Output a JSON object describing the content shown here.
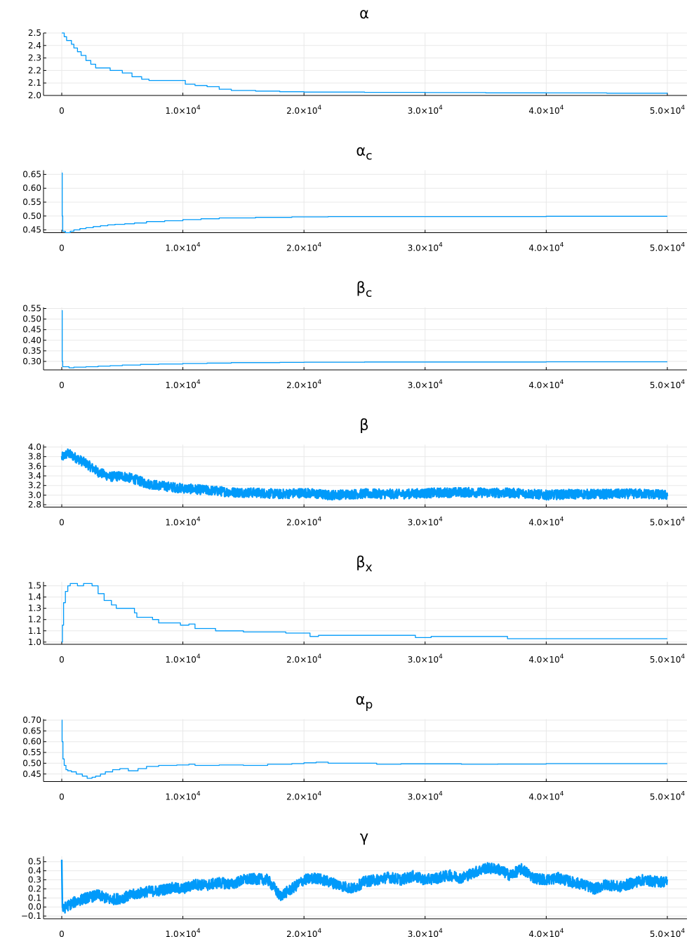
{
  "figure": {
    "accent_color": "#009AFA",
    "grid": true
  },
  "chart_data": [
    {
      "type": "line",
      "title": "α",
      "subscript": "",
      "ylim": [
        2.0,
        2.5
      ],
      "yticks": [
        2.0,
        2.1,
        2.2,
        2.3,
        2.4,
        2.5
      ],
      "decimals": 1,
      "xlim": [
        0,
        50000
      ],
      "xticks": [
        0,
        10000,
        20000,
        30000,
        40000,
        50000
      ],
      "xtick_labels": [
        "0",
        "1.0×10",
        "2.0×10",
        "3.0×10",
        "4.0×10",
        "5.0×10"
      ],
      "xtick_exponent": "4",
      "series": [
        {
          "kind": "step",
          "x": [
            0,
            200,
            400,
            600,
            800,
            1000,
            1300,
            1600,
            2000,
            2400,
            2800,
            3200,
            4000,
            5000,
            5800,
            6600,
            7200,
            8000,
            9500,
            10200,
            11000,
            12000,
            13000,
            14000,
            16000,
            18000,
            20000,
            25000,
            30000,
            35000,
            40000,
            45000,
            50000
          ],
          "y": [
            2.5,
            2.47,
            2.44,
            2.44,
            2.41,
            2.38,
            2.35,
            2.32,
            2.28,
            2.25,
            2.22,
            2.22,
            2.2,
            2.18,
            2.15,
            2.13,
            2.12,
            2.12,
            2.12,
            2.09,
            2.08,
            2.07,
            2.05,
            2.04,
            2.035,
            2.03,
            2.027,
            2.025,
            2.023,
            2.021,
            2.02,
            2.018,
            2.017
          ]
        }
      ]
    },
    {
      "type": "line",
      "title": "α",
      "subscript": "c",
      "ylim": [
        0.44,
        0.665
      ],
      "yticks": [
        0.45,
        0.5,
        0.55,
        0.6,
        0.65
      ],
      "decimals": 2,
      "xlim": [
        0,
        50000
      ],
      "xticks": [
        0,
        10000,
        20000,
        30000,
        40000,
        50000
      ],
      "xtick_labels": [
        "0",
        "1.0×10",
        "2.0×10",
        "3.0×10",
        "4.0×10",
        "5.0×10"
      ],
      "xtick_exponent": "4",
      "series": [
        {
          "kind": "step",
          "x": [
            0,
            40,
            80,
            300,
            700,
            1000,
            1500,
            2000,
            2600,
            3200,
            3800,
            4400,
            5200,
            6000,
            7000,
            8500,
            10000,
            11500,
            13000,
            16000,
            19000,
            22000,
            30000,
            40000,
            50000
          ],
          "y": [
            0.655,
            0.5,
            0.445,
            0.44,
            0.445,
            0.45,
            0.455,
            0.458,
            0.462,
            0.465,
            0.468,
            0.47,
            0.472,
            0.475,
            0.48,
            0.483,
            0.487,
            0.49,
            0.493,
            0.495,
            0.497,
            0.498,
            0.498,
            0.499,
            0.499
          ]
        }
      ]
    },
    {
      "type": "line",
      "title": "β",
      "subscript": "c",
      "ylim": [
        0.26,
        0.555
      ],
      "yticks": [
        0.3,
        0.35,
        0.4,
        0.45,
        0.5,
        0.55
      ],
      "decimals": 2,
      "xlim": [
        0,
        50000
      ],
      "xticks": [
        0,
        10000,
        20000,
        30000,
        40000,
        50000
      ],
      "xtick_labels": [
        "0",
        "1.0×10",
        "2.0×10",
        "3.0×10",
        "4.0×10",
        "5.0×10"
      ],
      "xtick_exponent": "4",
      "series": [
        {
          "kind": "step",
          "x": [
            0,
            40,
            80,
            600,
            1000,
            2000,
            3000,
            4000,
            5000,
            6500,
            8000,
            10000,
            12000,
            14000,
            18000,
            20000,
            25000,
            30000,
            40000,
            50000
          ],
          "y": [
            0.54,
            0.3,
            0.275,
            0.27,
            0.273,
            0.275,
            0.278,
            0.28,
            0.283,
            0.286,
            0.288,
            0.29,
            0.292,
            0.294,
            0.295,
            0.296,
            0.297,
            0.297,
            0.298,
            0.298
          ]
        }
      ]
    },
    {
      "type": "line",
      "title": "β",
      "subscript": "",
      "ylim": [
        2.75,
        4.05
      ],
      "yticks": [
        2.8,
        3.0,
        3.2,
        3.4,
        3.6,
        3.8,
        4.0
      ],
      "decimals": 1,
      "xlim": [
        0,
        50000
      ],
      "xticks": [
        0,
        10000,
        20000,
        30000,
        40000,
        50000
      ],
      "xtick_labels": [
        "0",
        "1.0×10",
        "2.0×10",
        "3.0×10",
        "4.0×10",
        "5.0×10"
      ],
      "xtick_exponent": "4",
      "series": [
        {
          "kind": "noisy",
          "noise": 0.1,
          "x": [
            0,
            500,
            1000,
            2000,
            3000,
            4000,
            5000,
            6000,
            7000,
            8000,
            10000,
            12000,
            14000,
            16000,
            18000,
            20000,
            22000,
            25000,
            28000,
            30000,
            33000,
            35000,
            38000,
            40000,
            42000,
            45000,
            48000,
            50000
          ],
          "y": [
            3.78,
            3.87,
            3.8,
            3.66,
            3.48,
            3.38,
            3.4,
            3.33,
            3.24,
            3.2,
            3.14,
            3.1,
            3.06,
            3.05,
            3.02,
            3.05,
            3.0,
            3.03,
            3.02,
            3.04,
            3.06,
            3.05,
            3.04,
            3.0,
            3.02,
            3.02,
            3.03,
            3.0
          ]
        }
      ]
    },
    {
      "type": "line",
      "title": "β",
      "subscript": "x",
      "ylim": [
        0.98,
        1.535
      ],
      "yticks": [
        1.0,
        1.1,
        1.2,
        1.3,
        1.4,
        1.5
      ],
      "decimals": 1,
      "xlim": [
        0,
        50000
      ],
      "xticks": [
        0,
        10000,
        20000,
        30000,
        40000,
        50000
      ],
      "xtick_labels": [
        "0",
        "1.0×10",
        "2.0×10",
        "3.0×10",
        "4.0×10",
        "5.0×10"
      ],
      "xtick_exponent": "4",
      "series": [
        {
          "kind": "step",
          "x": [
            0,
            60,
            150,
            300,
            500,
            700,
            1000,
            1300,
            1800,
            2200,
            2500,
            3000,
            3500,
            4100,
            4500,
            6000,
            6200,
            7500,
            8000,
            9800,
            10500,
            11000,
            12700,
            15000,
            18000,
            18500,
            20500,
            21200,
            25000,
            29200,
            30500,
            35000,
            36800,
            40000,
            45000,
            50000
          ],
          "y": [
            1.0,
            1.15,
            1.35,
            1.45,
            1.5,
            1.52,
            1.52,
            1.5,
            1.52,
            1.52,
            1.5,
            1.43,
            1.37,
            1.33,
            1.3,
            1.26,
            1.22,
            1.2,
            1.17,
            1.15,
            1.16,
            1.12,
            1.1,
            1.09,
            1.09,
            1.08,
            1.05,
            1.06,
            1.06,
            1.04,
            1.05,
            1.05,
            1.03,
            1.03,
            1.03,
            1.03
          ]
        }
      ]
    },
    {
      "type": "line",
      "title": "α",
      "subscript": "p",
      "ylim": [
        0.415,
        0.705
      ],
      "yticks": [
        0.45,
        0.5,
        0.55,
        0.6,
        0.65,
        0.7
      ],
      "decimals": 2,
      "xlim": [
        0,
        50000
      ],
      "xticks": [
        0,
        10000,
        20000,
        30000,
        40000,
        50000
      ],
      "xtick_labels": [
        "0",
        "1.0×10",
        "2.0×10",
        "3.0×10",
        "4.0×10",
        "5.0×10"
      ],
      "xtick_exponent": "4",
      "series": [
        {
          "kind": "step",
          "x": [
            0,
            30,
            100,
            200,
            350,
            500,
            800,
            1200,
            1700,
            2100,
            2500,
            2800,
            3200,
            3600,
            4200,
            4800,
            5500,
            6300,
            7000,
            8000,
            9500,
            10500,
            11000,
            13000,
            15000,
            17000,
            19000,
            20000,
            21000,
            22000,
            26000,
            28000,
            30000,
            33000,
            36000,
            40000,
            45000,
            50000
          ],
          "y": [
            0.7,
            0.6,
            0.52,
            0.49,
            0.47,
            0.465,
            0.46,
            0.45,
            0.44,
            0.43,
            0.435,
            0.44,
            0.45,
            0.46,
            0.47,
            0.475,
            0.465,
            0.475,
            0.485,
            0.49,
            0.492,
            0.495,
            0.49,
            0.492,
            0.49,
            0.495,
            0.498,
            0.502,
            0.505,
            0.5,
            0.495,
            0.497,
            0.497,
            0.495,
            0.496,
            0.498,
            0.498,
            0.498
          ]
        }
      ]
    },
    {
      "type": "line",
      "title": "γ",
      "subscript": "",
      "ylim": [
        -0.13,
        0.56
      ],
      "yticks": [
        -0.1,
        0.0,
        0.1,
        0.2,
        0.3,
        0.4,
        0.5
      ],
      "decimals": 1,
      "xlim": [
        0,
        50000
      ],
      "xticks": [
        0,
        10000,
        20000,
        30000,
        40000,
        50000
      ],
      "xtick_labels": [
        "0",
        "1.0×10",
        "2.0×10",
        "3.0×10",
        "4.0×10",
        "5.0×10"
      ],
      "xtick_exponent": "4",
      "series": [
        {
          "kind": "noisy",
          "noise": 0.06,
          "x": [
            0,
            50,
            150,
            300,
            1000,
            2000,
            3000,
            4000,
            5000,
            6000,
            7000,
            8000,
            9000,
            10000,
            11000,
            12000,
            13000,
            14000,
            15000,
            16000,
            17000,
            17500,
            18000,
            19000,
            20000,
            21000,
            22000,
            23000,
            24000,
            25000,
            26000,
            27000,
            28000,
            29000,
            30000,
            31000,
            32000,
            33000,
            34000,
            35000,
            36000,
            37000,
            38000,
            39000,
            40000,
            41000,
            42000,
            43000,
            44000,
            45000,
            46000,
            47000,
            48000,
            49000,
            50000
          ],
          "y": [
            0.55,
            0.0,
            -0.03,
            0.0,
            0.05,
            0.1,
            0.13,
            0.08,
            0.1,
            0.14,
            0.17,
            0.18,
            0.21,
            0.2,
            0.25,
            0.24,
            0.27,
            0.25,
            0.3,
            0.31,
            0.3,
            0.22,
            0.12,
            0.2,
            0.3,
            0.32,
            0.28,
            0.24,
            0.2,
            0.28,
            0.3,
            0.33,
            0.3,
            0.34,
            0.3,
            0.32,
            0.35,
            0.32,
            0.38,
            0.43,
            0.42,
            0.35,
            0.42,
            0.32,
            0.3,
            0.32,
            0.28,
            0.25,
            0.2,
            0.25,
            0.22,
            0.26,
            0.3,
            0.28,
            0.28
          ]
        }
      ]
    }
  ]
}
